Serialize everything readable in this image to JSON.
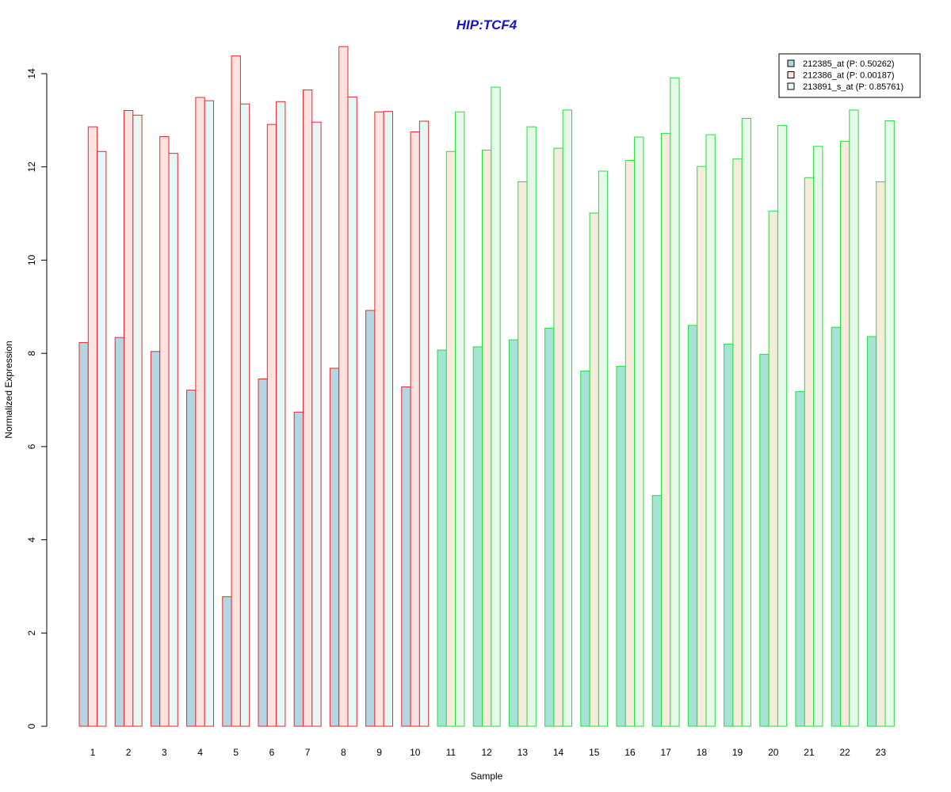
{
  "chart_data": {
    "type": "bar",
    "title": "HIP:TCF4",
    "xlabel": "Sample",
    "ylabel": "Normalized Expression",
    "ylim": [
      0,
      14
    ],
    "y_ticks": [
      0,
      2,
      4,
      6,
      8,
      10,
      12,
      14
    ],
    "grid": false,
    "legend_position": "top-right",
    "categories": [
      "1",
      "2",
      "3",
      "4",
      "5",
      "6",
      "7",
      "8",
      "9",
      "10",
      "11",
      "12",
      "13",
      "14",
      "15",
      "16",
      "17",
      "18",
      "19",
      "20",
      "21",
      "22",
      "23"
    ],
    "groups": [
      {
        "samples": [
          "1",
          "2",
          "3",
          "4",
          "5",
          "6",
          "7",
          "8",
          "9",
          "10"
        ],
        "border_color": "#e8262d"
      },
      {
        "samples": [
          "11",
          "12",
          "13",
          "14",
          "15",
          "16",
          "17",
          "18",
          "19",
          "20",
          "21",
          "22",
          "23"
        ],
        "border_color": "#22e03c"
      }
    ],
    "series": [
      {
        "name": "212385_at (P: 0.50262)",
        "fill": [
          "#b3d6e3",
          "#b3d6e3",
          "#b3d6e3",
          "#b3d6e3",
          "#b3d6e3",
          "#b3d6e3",
          "#b3d6e3",
          "#b3d6e3",
          "#b3d6e3",
          "#b3d6e3",
          "#a6e2d6",
          "#a6e2d6",
          "#a6e2d6",
          "#a6e2d6",
          "#a6e2d6",
          "#a6e2d6",
          "#a6e2d6",
          "#a6e2d6",
          "#a6e2d6",
          "#a6e2d6",
          "#a6e2d6",
          "#a6e2d6",
          "#a6e2d6"
        ],
        "legend_fill": "#b3d6e3",
        "values": [
          8.23,
          8.34,
          8.04,
          7.21,
          2.78,
          7.45,
          6.74,
          7.68,
          8.92,
          7.28,
          8.07,
          8.14,
          8.29,
          8.54,
          7.62,
          7.72,
          4.95,
          8.6,
          8.2,
          7.98,
          7.18,
          8.56,
          8.36
        ]
      },
      {
        "name": "212386_at (P: 0.00187)",
        "fill": [
          "#fde3e0",
          "#fde3e0",
          "#fde3e0",
          "#fde3e0",
          "#fde3e0",
          "#fde3e0",
          "#fde3e0",
          "#fde3e0",
          "#fde3e0",
          "#fde3e0",
          "#f7ebdc",
          "#f7ebdc",
          "#f7ebdc",
          "#f7ebdc",
          "#f7ebdc",
          "#f7ebdc",
          "#f7ebdc",
          "#f7ebdc",
          "#f7ebdc",
          "#f7ebdc",
          "#f7ebdc",
          "#f7ebdc",
          "#f7ebdc"
        ],
        "legend_fill": "#fde3e0",
        "values": [
          12.86,
          13.21,
          12.65,
          13.49,
          14.38,
          12.91,
          13.65,
          14.58,
          13.18,
          12.75,
          12.33,
          12.36,
          11.68,
          12.4,
          11.01,
          12.14,
          12.72,
          12.01,
          12.17,
          11.05,
          11.77,
          12.55,
          11.68
        ]
      },
      {
        "name": "213891_s_at (P: 0.85761)",
        "fill": [
          "#e6f7f5",
          "#e6f7f5",
          "#e6f7f5",
          "#e6f7f5",
          "#e6f7f5",
          "#e6f7f5",
          "#e6f7f5",
          "#e6f7f5",
          "#e6f7f5",
          "#e6f7f5",
          "#e7fae9",
          "#e7fae9",
          "#e7fae9",
          "#e7fae9",
          "#e7fae9",
          "#e7fae9",
          "#e7fae9",
          "#e7fae9",
          "#e7fae9",
          "#e7fae9",
          "#e7fae9",
          "#e7fae9",
          "#e7fae9"
        ],
        "legend_fill": "#e6f7f5",
        "values": [
          12.33,
          13.11,
          12.29,
          13.42,
          13.35,
          13.4,
          12.96,
          13.5,
          13.19,
          12.98,
          13.18,
          13.71,
          12.86,
          13.22,
          11.91,
          12.64,
          13.91,
          12.69,
          13.04,
          12.89,
          12.44,
          13.22,
          12.99
        ]
      }
    ],
    "title_color": "#1a12c8"
  }
}
